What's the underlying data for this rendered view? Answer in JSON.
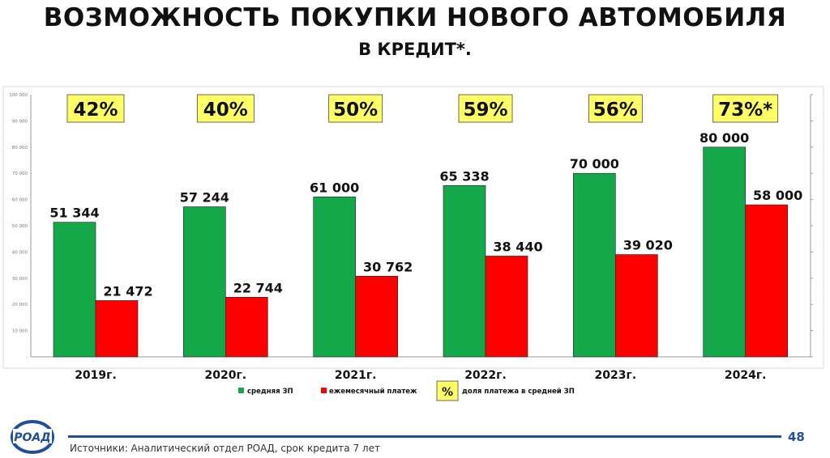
{
  "slide": {
    "title": "ВОЗМОЖНОСТЬ ПОКУПКИ НОВОГО АВТОМОБИЛЯ",
    "subtitle": "В КРЕДИТ*.",
    "page_number": "48",
    "source": "Источники: Аналитический отдел РОАД, срок кредита 7 лет",
    "logo_text": "РОАД"
  },
  "chart_data": {
    "type": "bar",
    "categories": [
      "2019г.",
      "2020г.",
      "2021г.",
      "2022г.",
      "2023г.",
      "2024г."
    ],
    "series": [
      {
        "name": "средняя ЗП",
        "values": [
          51344,
          57244,
          61000,
          65338,
          70000,
          80000
        ],
        "color": "#14a84b"
      },
      {
        "name": "ежемесячный платеж",
        "values": [
          21472,
          22744,
          30762,
          38440,
          39020,
          58000
        ],
        "color": "#ff0000"
      }
    ],
    "value_labels": [
      [
        "51 344",
        "57 244",
        "61 000",
        "65 338",
        "70 000",
        "80 000"
      ],
      [
        "21 472",
        "22 744",
        "30 762",
        "38 440",
        "39 020",
        "58 000"
      ]
    ],
    "share_labels": [
      "42%",
      "40%",
      "50%",
      "59%",
      "56%",
      "73%*"
    ],
    "share_legend": {
      "symbol": "%",
      "label": "доля платежа в средней ЗП"
    },
    "yticks": [
      0,
      10000,
      20000,
      30000,
      40000,
      50000,
      60000,
      70000,
      80000,
      90000,
      100000
    ],
    "ytick_labels": [
      "-",
      "10 000",
      "20 000",
      "30 000",
      "40 000",
      "50 000",
      "60 000",
      "70 000",
      "80 000",
      "90 000",
      "100 000"
    ],
    "ylim": [
      0,
      100000
    ],
    "legend_position": "bottom",
    "colors": {
      "highlight_box": "#ffff66",
      "axis": "#999999",
      "footer": "#1f4e9c"
    }
  }
}
